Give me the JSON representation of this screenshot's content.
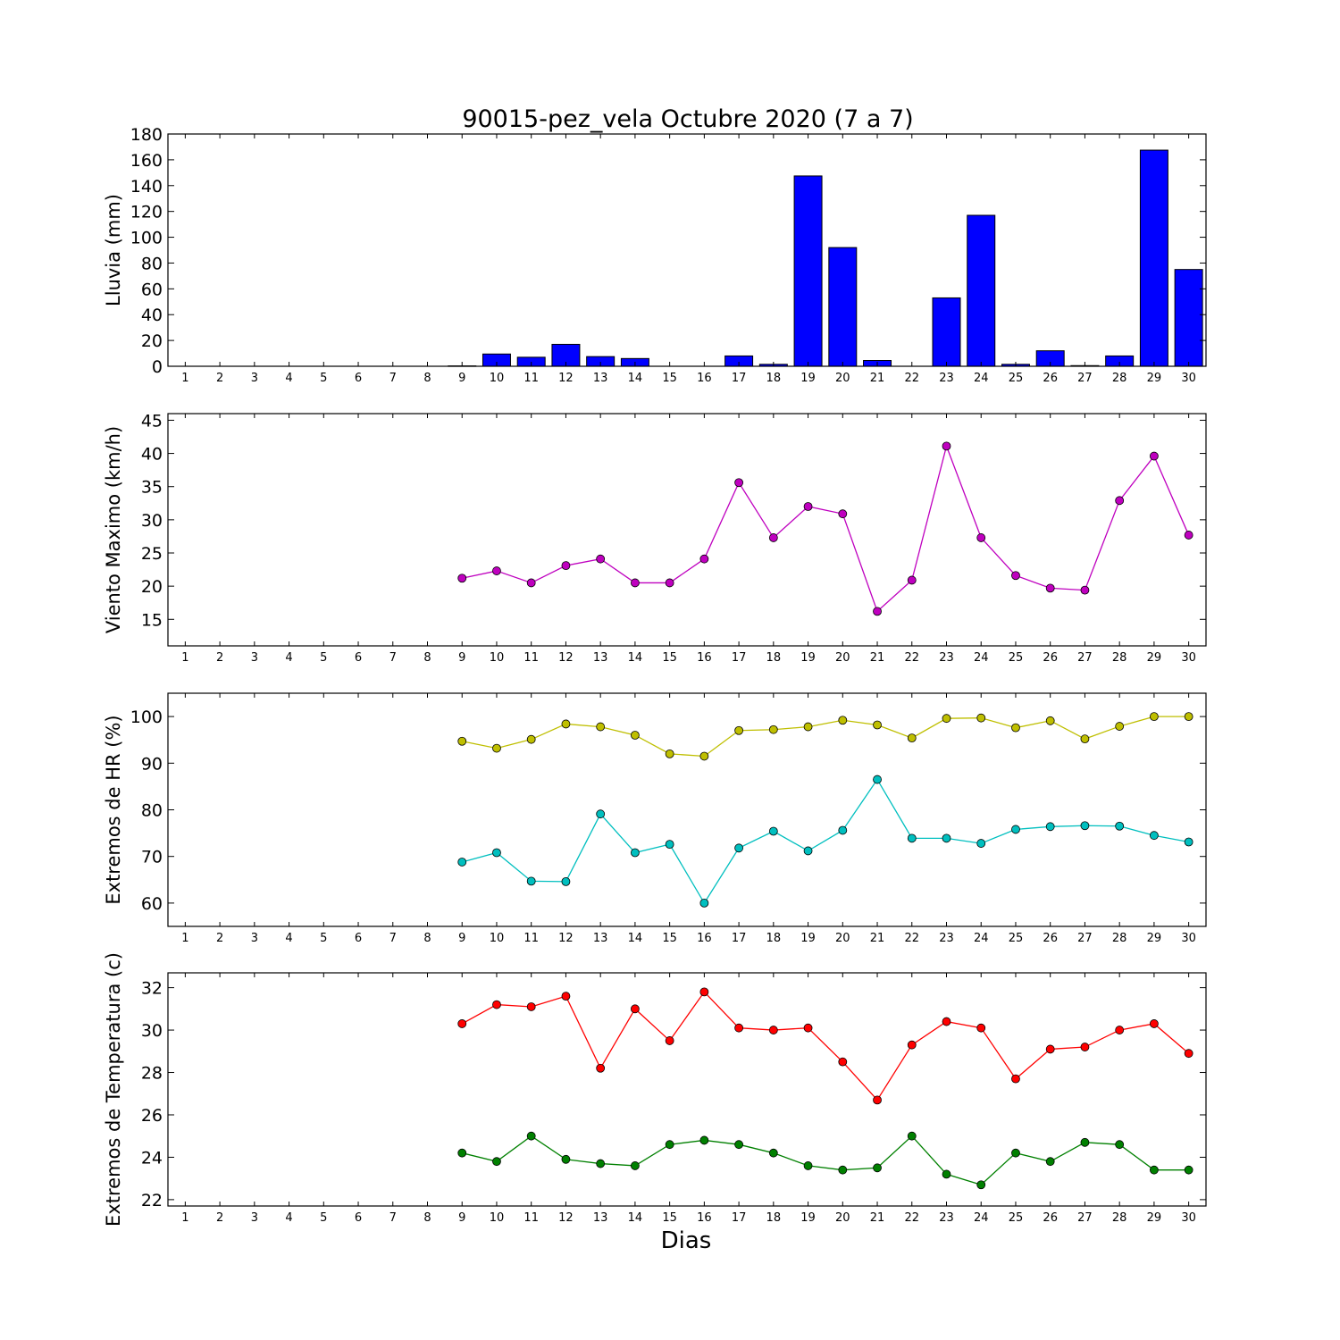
{
  "title": "90015-pez_vela Octubre 2020  (7 a 7)",
  "xlabel": "Dias",
  "chart_data": [
    {
      "type": "bar",
      "ylabel": "Lluvia (mm)",
      "x": [
        1,
        2,
        3,
        4,
        5,
        6,
        7,
        8,
        9,
        10,
        11,
        12,
        13,
        14,
        15,
        16,
        17,
        18,
        19,
        20,
        21,
        22,
        23,
        24,
        25,
        26,
        27,
        28,
        29,
        30
      ],
      "xlim": [
        0.5,
        30.5
      ],
      "ylim": [
        0,
        180
      ],
      "yticks": [
        0,
        20,
        40,
        60,
        80,
        100,
        120,
        140,
        160,
        180
      ],
      "color": "#0000ff",
      "series": [
        {
          "values": [
            0,
            0,
            0,
            0,
            0,
            0,
            0,
            0,
            0.3,
            9.5,
            7,
            17,
            7.5,
            6,
            0,
            0,
            8,
            1.5,
            147.5,
            92,
            4.5,
            0,
            53,
            117,
            1.5,
            12,
            0.5,
            8,
            167.5,
            75
          ]
        }
      ]
    },
    {
      "type": "line",
      "ylabel": "Viento Maximo (km/h)",
      "x": [
        9,
        10,
        11,
        12,
        13,
        14,
        15,
        16,
        17,
        18,
        19,
        20,
        21,
        22,
        23,
        24,
        25,
        26,
        27,
        28,
        29,
        30
      ],
      "xticks": [
        1,
        2,
        3,
        4,
        5,
        6,
        7,
        8,
        9,
        10,
        11,
        12,
        13,
        14,
        15,
        16,
        17,
        18,
        19,
        20,
        21,
        22,
        23,
        24,
        25,
        26,
        27,
        28,
        29,
        30
      ],
      "xlim": [
        0.5,
        30.5
      ],
      "ylim": [
        11,
        46
      ],
      "yticks": [
        15,
        20,
        25,
        30,
        35,
        40,
        45
      ],
      "series": [
        {
          "color": "#bf00bf",
          "values": [
            21.2,
            22.3,
            20.5,
            23.1,
            24.1,
            20.5,
            20.5,
            24.1,
            35.6,
            27.3,
            32,
            30.9,
            16.2,
            20.9,
            41.1,
            27.3,
            21.6,
            19.7,
            19.4,
            32.9,
            39.6,
            27.7
          ]
        }
      ]
    },
    {
      "type": "line",
      "ylabel": "Extremos de HR (%)",
      "x": [
        9,
        10,
        11,
        12,
        13,
        14,
        15,
        16,
        17,
        18,
        19,
        20,
        21,
        22,
        23,
        24,
        25,
        26,
        27,
        28,
        29,
        30
      ],
      "xticks": [
        1,
        2,
        3,
        4,
        5,
        6,
        7,
        8,
        9,
        10,
        11,
        12,
        13,
        14,
        15,
        16,
        17,
        18,
        19,
        20,
        21,
        22,
        23,
        24,
        25,
        26,
        27,
        28,
        29,
        30
      ],
      "xlim": [
        0.5,
        30.5
      ],
      "ylim": [
        55,
        105
      ],
      "yticks": [
        60,
        70,
        80,
        90,
        100
      ],
      "series": [
        {
          "color": "#bfbf00",
          "values": [
            94.7,
            93.2,
            95.1,
            98.4,
            97.8,
            96,
            92,
            91.5,
            97,
            97.2,
            97.8,
            99.2,
            98.2,
            95.4,
            99.6,
            99.7,
            97.6,
            99.1,
            95.2,
            97.9,
            100,
            100
          ]
        },
        {
          "color": "#00bfbf",
          "values": [
            68.8,
            70.8,
            64.7,
            64.6,
            79.1,
            70.8,
            72.6,
            60,
            71.8,
            75.4,
            71.2,
            75.6,
            86.5,
            73.9,
            73.9,
            72.8,
            75.8,
            76.4,
            76.6,
            76.5,
            74.5,
            73.1
          ]
        }
      ]
    },
    {
      "type": "line",
      "ylabel": "Extremos de Temperatura (c)",
      "x": [
        9,
        10,
        11,
        12,
        13,
        14,
        15,
        16,
        17,
        18,
        19,
        20,
        21,
        22,
        23,
        24,
        25,
        26,
        27,
        28,
        29,
        30
      ],
      "xticks": [
        1,
        2,
        3,
        4,
        5,
        6,
        7,
        8,
        9,
        10,
        11,
        12,
        13,
        14,
        15,
        16,
        17,
        18,
        19,
        20,
        21,
        22,
        23,
        24,
        25,
        26,
        27,
        28,
        29,
        30
      ],
      "xlim": [
        0.5,
        30.5
      ],
      "ylim": [
        21.7,
        32.7
      ],
      "yticks": [
        22,
        24,
        26,
        28,
        30,
        32
      ],
      "series": [
        {
          "color": "#ff0000",
          "values": [
            30.3,
            31.2,
            31.1,
            31.6,
            28.2,
            31,
            29.5,
            31.8,
            30.1,
            30,
            30.1,
            28.5,
            26.7,
            29.3,
            30.4,
            30.1,
            27.7,
            29.1,
            29.2,
            30,
            30.3,
            28.9
          ]
        },
        {
          "color": "#008000",
          "values": [
            24.2,
            23.8,
            25,
            23.9,
            23.7,
            23.6,
            24.6,
            24.8,
            24.6,
            24.2,
            23.6,
            23.4,
            23.5,
            25,
            23.2,
            22.7,
            24.2,
            23.8,
            24.7,
            24.6,
            23.4,
            23.4
          ]
        }
      ]
    }
  ]
}
